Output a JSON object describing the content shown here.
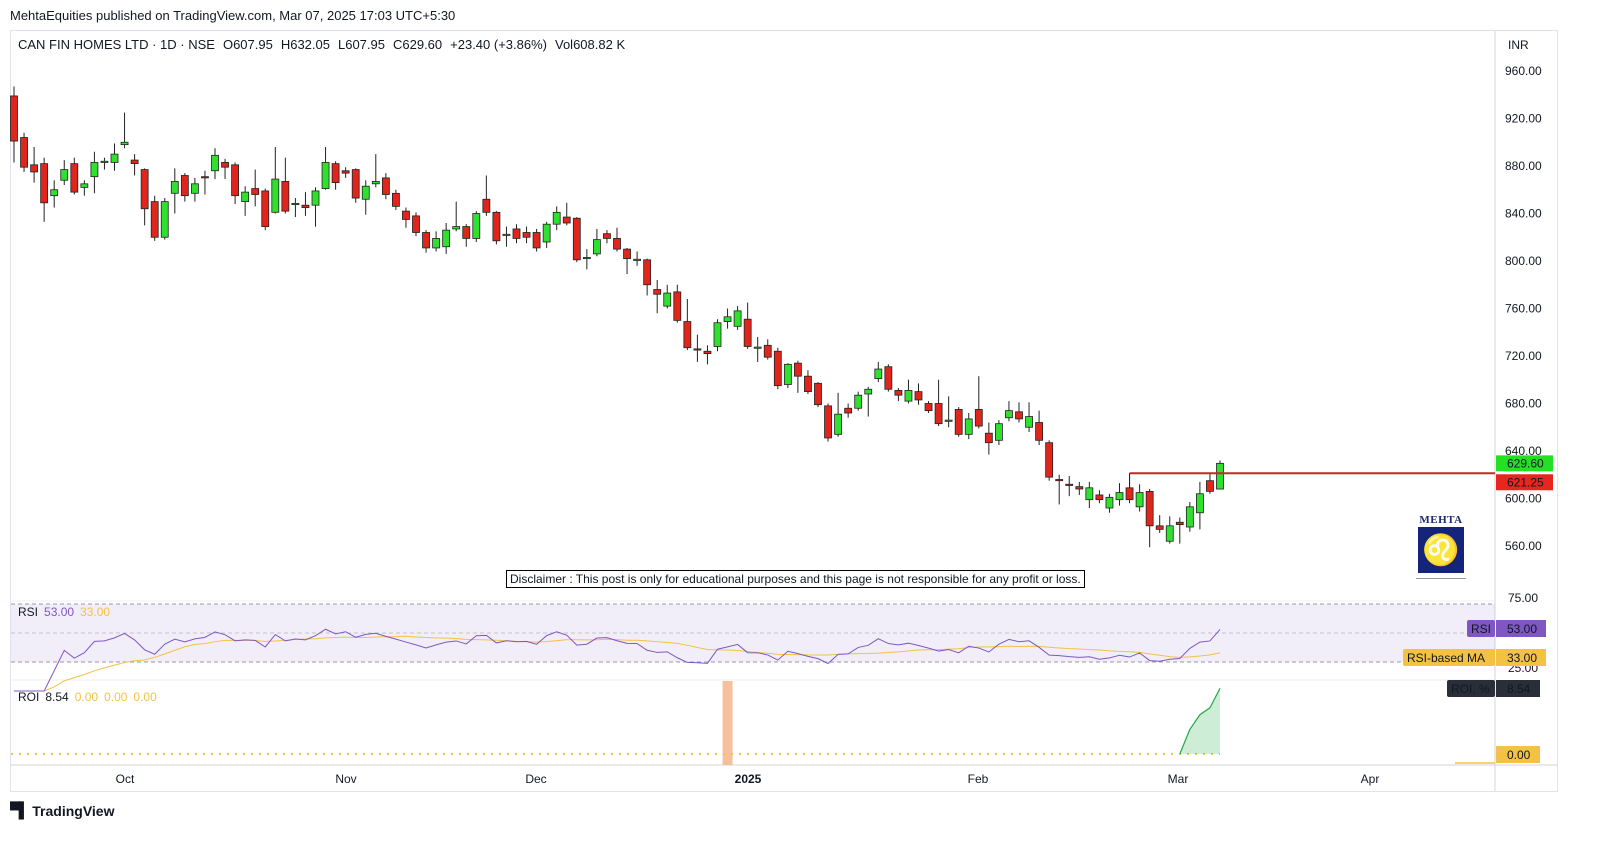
{
  "published": "MehtaEquities published on TradingView.com, Mar 07, 2025 17:03 UTC+5:30",
  "legend": {
    "symbol": "CAN FIN HOMES LTD · 1D · NSE",
    "open": "O607.95",
    "high": "H632.05",
    "low": "L607.95",
    "close": "C629.60",
    "change": "+23.40 (+3.86%)",
    "volume": "Vol608.82 K"
  },
  "currency": "INR",
  "disclaimer": "Disclaimer : This post is only for educational purposes and this page is not responsible for any profit or loss.",
  "logo_text": "MEHTA",
  "rsi_legend": {
    "name": "RSI",
    "value": "53.00",
    "ma": "33.00"
  },
  "roi_legend": {
    "name": "ROI",
    "value": "8.54",
    "v2": "0.00",
    "v3": "0.00",
    "v4": "0.00"
  },
  "brand": "TradingView",
  "colors": {
    "up": "#2fe02f",
    "down": "#e0261c",
    "rsi": "#7e57c2",
    "rsi_ma": "#f3c244",
    "level_line": "#c62828",
    "roi": "#22ab44",
    "session_band": "#f6b48a"
  },
  "chart_data": {
    "type": "candlestick",
    "price_axis": {
      "ticks": [
        "960.00",
        "920.00",
        "880.00",
        "840.00",
        "800.00",
        "760.00",
        "720.00",
        "680.00",
        "640.00",
        "600.00",
        "560.00"
      ],
      "range": [
        560,
        960
      ]
    },
    "time_axis": {
      "ticks": [
        "Oct",
        "Nov",
        "Dec",
        "2025",
        "Feb",
        "Mar",
        "Apr"
      ]
    },
    "candles_ohlc": [
      [
        939,
        947,
        883,
        901
      ],
      [
        904,
        908,
        875,
        879
      ],
      [
        881,
        896,
        866,
        875
      ],
      [
        882,
        887,
        833,
        849
      ],
      [
        855,
        868,
        845,
        860
      ],
      [
        868,
        885,
        864,
        877
      ],
      [
        882,
        887,
        856,
        858
      ],
      [
        862,
        868,
        855,
        865
      ],
      [
        871,
        892,
        857,
        883
      ],
      [
        883,
        887,
        877,
        884
      ],
      [
        883,
        899,
        876,
        890
      ],
      [
        898,
        925,
        895,
        900
      ],
      [
        885,
        890,
        872,
        882
      ],
      [
        877,
        878,
        830,
        844
      ],
      [
        850,
        855,
        817,
        820
      ],
      [
        820,
        853,
        818,
        850
      ],
      [
        857,
        878,
        840,
        867
      ],
      [
        872,
        874,
        850,
        855
      ],
      [
        857,
        870,
        850,
        865
      ],
      [
        871,
        876,
        856,
        870
      ],
      [
        876,
        895,
        869,
        889
      ],
      [
        883,
        886,
        869,
        879
      ],
      [
        881,
        883,
        848,
        855
      ],
      [
        850,
        863,
        838,
        858
      ],
      [
        861,
        877,
        846,
        856
      ],
      [
        859,
        861,
        826,
        829
      ],
      [
        841,
        896,
        840,
        869
      ],
      [
        867,
        887,
        840,
        842
      ],
      [
        848,
        853,
        837,
        848.5
      ],
      [
        847,
        858,
        838,
        845
      ],
      [
        847,
        862,
        829,
        859
      ],
      [
        861,
        896,
        860,
        883
      ],
      [
        882,
        884,
        860,
        866
      ],
      [
        876,
        879,
        870,
        874
      ],
      [
        877,
        878,
        849,
        853
      ],
      [
        852,
        868,
        839,
        863
      ],
      [
        865,
        890,
        862,
        867
      ],
      [
        870,
        874,
        852,
        856
      ],
      [
        857,
        860,
        843,
        846
      ],
      [
        842,
        845,
        828,
        835
      ],
      [
        838,
        841,
        821,
        824
      ],
      [
        824,
        826,
        807,
        811
      ],
      [
        811,
        825,
        808,
        819
      ],
      [
        812,
        832,
        806,
        826
      ],
      [
        827,
        850,
        825,
        829
      ],
      [
        829,
        831,
        812,
        819
      ],
      [
        819,
        842,
        816,
        840
      ],
      [
        852,
        872,
        838,
        841
      ],
      [
        841,
        842,
        814,
        817
      ],
      [
        822,
        829,
        812,
        822.5
      ],
      [
        827,
        831,
        815,
        819
      ],
      [
        824,
        829,
        815,
        820
      ],
      [
        824,
        827,
        808,
        811
      ],
      [
        816,
        833,
        811,
        831
      ],
      [
        831,
        846,
        826,
        841
      ],
      [
        837,
        849,
        830,
        832
      ],
      [
        836,
        837,
        799,
        801
      ],
      [
        802,
        810,
        793,
        803
      ],
      [
        806,
        827,
        804,
        818
      ],
      [
        823,
        826,
        815,
        819
      ],
      [
        819,
        828,
        808,
        810
      ],
      [
        810,
        811,
        789,
        802
      ],
      [
        801,
        808,
        796,
        801.5
      ],
      [
        801,
        802,
        771,
        780
      ],
      [
        776,
        784,
        756,
        772
      ],
      [
        762,
        780,
        760,
        773
      ],
      [
        774,
        780,
        748,
        750
      ],
      [
        749,
        768,
        725,
        727
      ],
      [
        726,
        738,
        715,
        725
      ],
      [
        724,
        729,
        713,
        722
      ],
      [
        728,
        751,
        724,
        748
      ],
      [
        749,
        760,
        743,
        753
      ],
      [
        745,
        762,
        742,
        758
      ],
      [
        751,
        765,
        726,
        728
      ],
      [
        727,
        736,
        715,
        727.5
      ],
      [
        729,
        734,
        717,
        719
      ],
      [
        724,
        727,
        692,
        695
      ],
      [
        696,
        714,
        693,
        713
      ],
      [
        714,
        716,
        689,
        703
      ],
      [
        703,
        708,
        688,
        690
      ],
      [
        697,
        698,
        677,
        679
      ],
      [
        678,
        680,
        648,
        651
      ],
      [
        654,
        689,
        652,
        671
      ],
      [
        676,
        680,
        668,
        672
      ],
      [
        676,
        690,
        674,
        687
      ],
      [
        688,
        694,
        669,
        692
      ],
      [
        701,
        715,
        698,
        709
      ],
      [
        711,
        713,
        690,
        692
      ],
      [
        691,
        693,
        682,
        687
      ],
      [
        682,
        700,
        680,
        691
      ],
      [
        690,
        697,
        679,
        683
      ],
      [
        680,
        682,
        672,
        674
      ],
      [
        680,
        700,
        661,
        663
      ],
      [
        665,
        686,
        660,
        666
      ],
      [
        675,
        677,
        652,
        654
      ],
      [
        654,
        672,
        650,
        667
      ],
      [
        675,
        703,
        659,
        661
      ],
      [
        655,
        664,
        637,
        647
      ],
      [
        649,
        666,
        645,
        663
      ],
      [
        668,
        682,
        665,
        674
      ],
      [
        673,
        681,
        664,
        667
      ],
      [
        660,
        681,
        656,
        669
      ],
      [
        664,
        674,
        645,
        649
      ],
      [
        647,
        649,
        615,
        618
      ],
      [
        616,
        620,
        595,
        615.5
      ],
      [
        612,
        619,
        602,
        611
      ],
      [
        610,
        614,
        603,
        608
      ],
      [
        599,
        614,
        592,
        609
      ],
      [
        603,
        607,
        596,
        599
      ],
      [
        592,
        604,
        588,
        601
      ],
      [
        599,
        613,
        594,
        605
      ],
      [
        609,
        621.25,
        596,
        599
      ],
      [
        593,
        612,
        589,
        605
      ],
      [
        606,
        608,
        559,
        577
      ],
      [
        577,
        586,
        571,
        574
      ],
      [
        564,
        585,
        562,
        577
      ],
      [
        580,
        584,
        562,
        578
      ],
      [
        576,
        597,
        572,
        593
      ],
      [
        588,
        614,
        574,
        604
      ],
      [
        615,
        622,
        604,
        606
      ],
      [
        607.95,
        632.05,
        607.95,
        629.6
      ]
    ],
    "last_price": "629.60",
    "horizontal_level": {
      "value": 621.25,
      "label": "621.25"
    },
    "rsi": {
      "label": "RSI",
      "value": "53.00",
      "ma_label": "RSI-based MA",
      "ma_value": "33.00",
      "levels": [
        "75.00",
        "25.00"
      ],
      "period": 14
    },
    "roi": {
      "label": "ROI, %",
      "value": "8.54",
      "zero_label": "0.00",
      "recent_values": [
        0,
        3.2,
        5.1,
        6.0,
        8.54
      ]
    }
  }
}
